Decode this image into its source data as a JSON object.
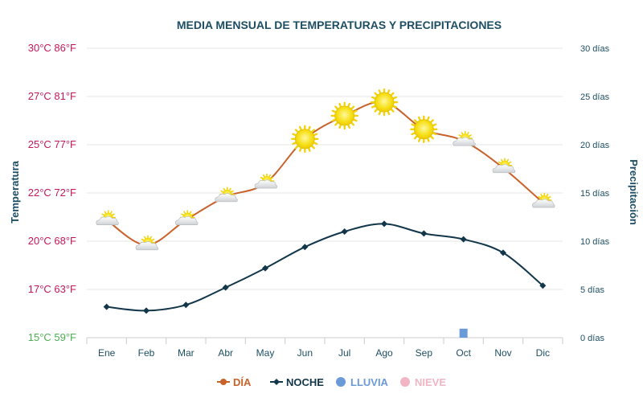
{
  "chart_data": {
    "type": "line",
    "title": "MEDIA MENSUAL DE TEMPERATURAS Y PRECIPITACIONES",
    "categories": [
      "Ene",
      "Feb",
      "Mar",
      "Abr",
      "May",
      "Jun",
      "Jul",
      "Ago",
      "Sep",
      "Oct",
      "Nov",
      "Dic"
    ],
    "y_left": {
      "label": "Temperatura",
      "ylim": [
        15,
        30
      ],
      "ticks": [
        {
          "value": 15,
          "label": "15°C 59°F"
        },
        {
          "value": 17.5,
          "label": "17°C 63°F"
        },
        {
          "value": 20,
          "label": "20°C 68°F"
        },
        {
          "value": 22.5,
          "label": "22°C 72°F"
        },
        {
          "value": 25,
          "label": "25°C 77°F"
        },
        {
          "value": 27.5,
          "label": "27°C 81°F"
        },
        {
          "value": 30,
          "label": "30°C 86°F"
        }
      ]
    },
    "y_right": {
      "label": "Precipitación",
      "ylim": [
        0,
        30
      ],
      "ticks": [
        {
          "value": 0,
          "label": "0 días"
        },
        {
          "value": 5,
          "label": "5 días"
        },
        {
          "value": 10,
          "label": "10 días"
        },
        {
          "value": 15,
          "label": "15 días"
        },
        {
          "value": 20,
          "label": "20 días"
        },
        {
          "value": 25,
          "label": "25 días"
        },
        {
          "value": 30,
          "label": "30 días"
        }
      ]
    },
    "series": [
      {
        "name": "DÍA",
        "color": "#c8622a",
        "values": [
          21.1,
          19.8,
          21.1,
          22.3,
          23.0,
          25.3,
          26.5,
          27.2,
          25.8,
          25.2,
          23.8,
          22.0
        ],
        "icons": [
          "cloud-sun",
          "cloud-sun",
          "cloud-sun",
          "cloud-sun",
          "cloud-sun",
          "sun",
          "sun",
          "sun",
          "sun",
          "cloud-sun",
          "cloud-sun",
          "cloud-sun"
        ]
      },
      {
        "name": "NOCHE",
        "color": "#12364a",
        "values": [
          16.6,
          16.4,
          16.7,
          17.6,
          18.6,
          19.7,
          20.5,
          20.9,
          20.4,
          20.1,
          19.4,
          17.7
        ]
      },
      {
        "name": "LLUVIA",
        "color": "#6b9ad8",
        "values": [
          0,
          0,
          0,
          0,
          0,
          0,
          0,
          0,
          0,
          0.6,
          0,
          0
        ]
      },
      {
        "name": "NIEVE",
        "color": "#f2b5c5",
        "values": [
          0,
          0,
          0,
          0,
          0,
          0,
          0,
          0,
          0,
          0,
          0,
          0
        ]
      }
    ],
    "legend_position": "bottom-center"
  },
  "colors": {
    "title": "#1d4e63",
    "left_tick": "#c2185b",
    "left_tick_base": "#4caf50",
    "right_tick": "#1d4e63",
    "axis_title": "#1d4e63",
    "grid": "#e6e6e6"
  }
}
